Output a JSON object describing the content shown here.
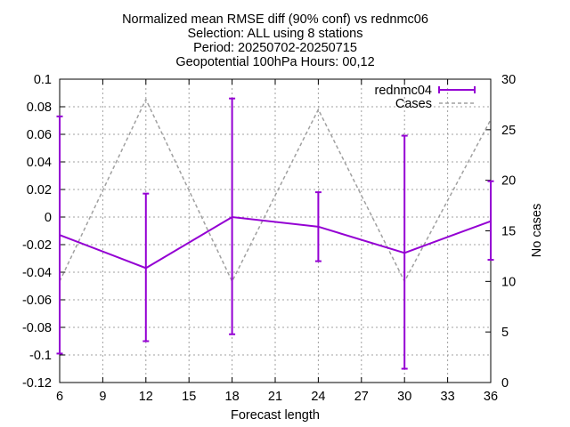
{
  "chart_data": {
    "type": "line",
    "title": [
      "Normalized mean RMSE diff (90% conf) vs rednmc06",
      "Selection: ALL using     8 stations",
      "Period: 20250702-20250715",
      "Geopotential 100hPa   Hours: 00,12"
    ],
    "xlabel": "Forecast length",
    "ylabel": "",
    "y2label": "No cases",
    "xlim": [
      6,
      36
    ],
    "ylim": [
      -0.12,
      0.1
    ],
    "y2lim": [
      0,
      30
    ],
    "x_ticks": [
      6,
      9,
      12,
      15,
      18,
      21,
      24,
      27,
      30,
      33,
      36
    ],
    "y_ticks": [
      0.1,
      0.08,
      0.06,
      0.04,
      0.02,
      0,
      -0.02,
      -0.04,
      -0.06,
      -0.08,
      -0.1,
      -0.12
    ],
    "y_tick_labels": [
      "0.1",
      "0.08",
      "0.06",
      "0.04",
      "0.02",
      "0",
      "-0.02",
      "-0.04",
      "-0.06",
      "-0.08",
      "-0.1",
      "-0.12"
    ],
    "y2_ticks": [
      0,
      5,
      10,
      15,
      20,
      25,
      30
    ],
    "grid": true,
    "legend_position": "top-right",
    "x": [
      6,
      12,
      18,
      24,
      30,
      36
    ],
    "series": [
      {
        "name": "rednmc04",
        "axis": "left",
        "color": "#9400d3",
        "values": [
          -0.013,
          -0.037,
          0.0,
          -0.007,
          -0.026,
          -0.003
        ],
        "err_low": [
          -0.099,
          -0.09,
          -0.085,
          -0.032,
          -0.11,
          -0.031
        ],
        "err_high": [
          0.073,
          0.017,
          0.086,
          0.018,
          0.059,
          0.026
        ]
      },
      {
        "name": "Cases",
        "axis": "right",
        "color": "#a0a0a0",
        "dashed": true,
        "values": [
          10,
          28,
          10,
          27,
          10,
          26
        ]
      }
    ]
  }
}
